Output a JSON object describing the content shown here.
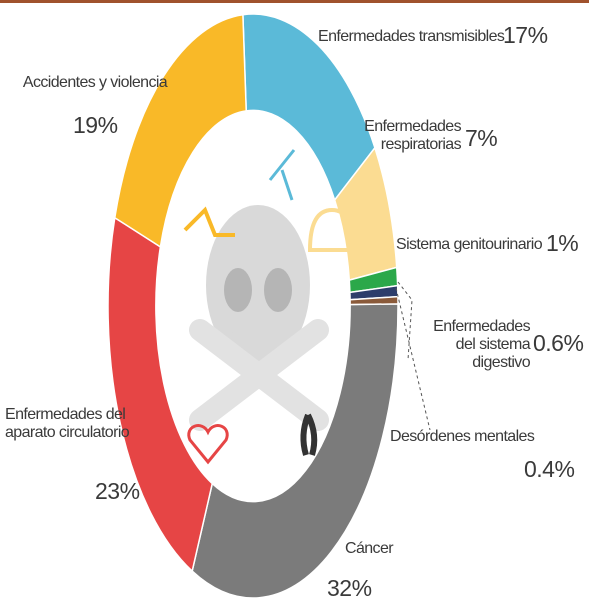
{
  "chart_data": {
    "type": "donut",
    "categories": [
      "Enfermedades transmisibles",
      "Enfermedades respiratorias",
      "Sistema genitourinario",
      "Enfermedades del sistema digestivo",
      "Desórdenes mentales",
      "Cáncer",
      "Enfermedades del aparato circulatorio",
      "Accidentes y violencia"
    ],
    "values": [
      17,
      7,
      1,
      0.6,
      0.4,
      32,
      23,
      19
    ],
    "value_labels": [
      "17%",
      "7%",
      "1%",
      "0.6%",
      "0.4%",
      "32%",
      "23%",
      "19%"
    ],
    "colors": [
      "#5bbad8",
      "#fbdc92",
      "#2ba84a",
      "#2d3d6b",
      "#8a5a3a",
      "#7b7b7b",
      "#e64545",
      "#f9b928"
    ]
  }
}
